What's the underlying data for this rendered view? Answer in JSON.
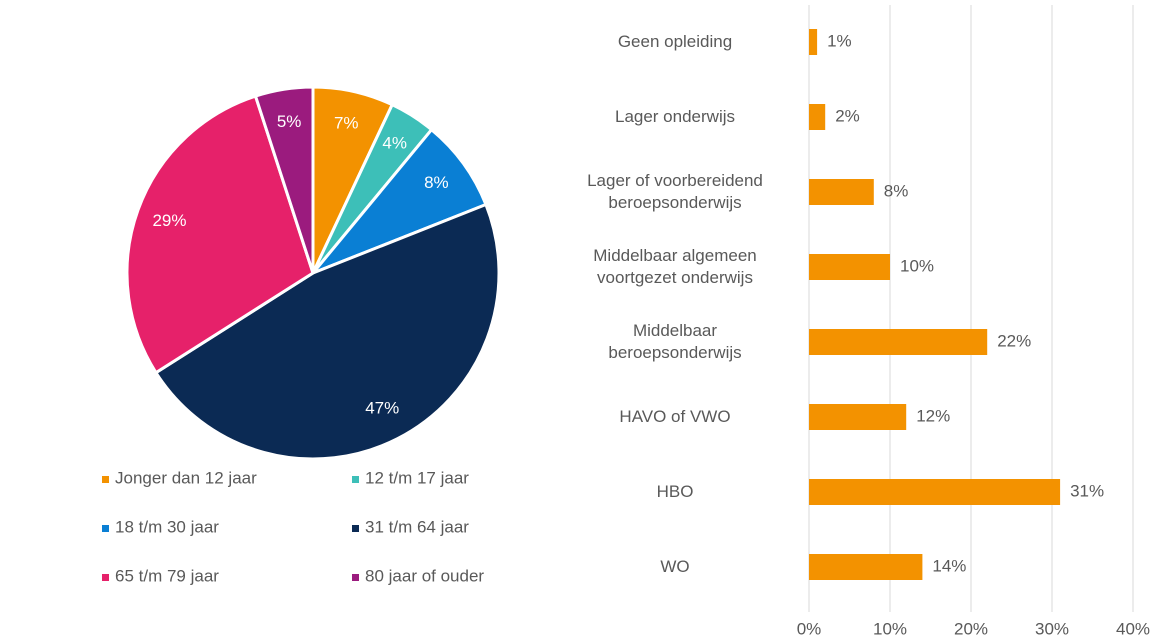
{
  "chart_data": [
    {
      "type": "pie",
      "categories": [
        "Jonger dan 12 jaar",
        "12 t/m 17 jaar",
        "18 t/m 30 jaar",
        "31 t/m 64 jaar",
        "65 t/m 79 jaar",
        "80 jaar of ouder"
      ],
      "values": [
        7,
        4,
        8,
        47,
        29,
        5
      ],
      "value_labels": [
        "7%",
        "4%",
        "8%",
        "47%",
        "29%",
        "5%"
      ],
      "colors": [
        "#f39200",
        "#3dbfb8",
        "#0a7fd4",
        "#0b2a54",
        "#e6216a",
        "#9b1b7e"
      ],
      "legend": "bottom"
    },
    {
      "type": "barh",
      "categories": [
        "Geen opleiding",
        "Lager onderwijs",
        "Lager of voorbereidend\nberoepsonderwijs",
        "Middelbaar algemeen\nvoortgezet onderwijs",
        "Middelbaar\nberoepsonderwijs",
        "HAVO of VWO",
        "HBO",
        "WO"
      ],
      "values": [
        1,
        2,
        8,
        10,
        22,
        12,
        31,
        14
      ],
      "value_labels": [
        "1%",
        "2%",
        "8%",
        "10%",
        "22%",
        "12%",
        "31%",
        "14%"
      ],
      "color": "#f39200",
      "xlim": [
        0,
        40
      ],
      "xticks": [
        {
          "value": 0,
          "label": "0%"
        },
        {
          "value": 10,
          "label": "10%"
        },
        {
          "value": 20,
          "label": "20%"
        },
        {
          "value": 30,
          "label": "30%"
        },
        {
          "value": 40,
          "label": "40%"
        }
      ],
      "grid": true
    }
  ]
}
